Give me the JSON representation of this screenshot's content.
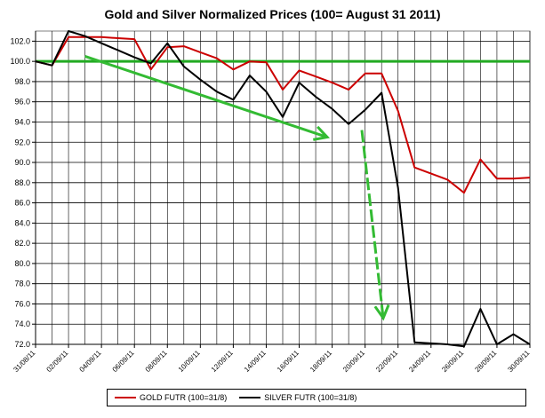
{
  "chart_data": {
    "type": "line",
    "title": "Gold and Silver Normalized Prices  (100= August 31 2011)",
    "xlabel": "",
    "ylabel": "",
    "ylim": [
      72.0,
      103.0
    ],
    "yticks": [
      "72.0",
      "74.0",
      "76.0",
      "78.0",
      "80.0",
      "82.0",
      "84.0",
      "86.0",
      "88.0",
      "90.0",
      "92.0",
      "94.0",
      "96.0",
      "98.0",
      "100.0",
      "102.0"
    ],
    "xticks": [
      "31/08/11",
      "02/09/11",
      "04/09/11",
      "06/09/11",
      "08/09/11",
      "10/09/11",
      "12/09/11",
      "14/09/11",
      "16/09/11",
      "18/09/11",
      "20/09/11",
      "22/09/11",
      "24/09/11",
      "26/09/11",
      "28/09/11",
      "30/09/11"
    ],
    "x_range_days": [
      0,
      30
    ],
    "grid": true,
    "legend_position": "bottom",
    "reference_line": {
      "y": 100.0,
      "color": "#22aa22"
    },
    "series": [
      {
        "name": "GOLD  FUTR (100=31/8)",
        "color": "#cc0000",
        "points": [
          [
            0,
            100.0
          ],
          [
            1,
            99.6
          ],
          [
            2,
            102.4
          ],
          [
            3,
            102.4
          ],
          [
            4,
            102.4
          ],
          [
            5,
            102.3
          ],
          [
            6,
            102.2
          ],
          [
            7,
            99.2
          ],
          [
            8,
            101.4
          ],
          [
            9,
            101.5
          ],
          [
            10,
            100.9
          ],
          [
            11,
            100.3
          ],
          [
            12,
            99.2
          ],
          [
            13,
            100.0
          ],
          [
            14,
            99.9
          ],
          [
            15,
            97.2
          ],
          [
            16,
            99.1
          ],
          [
            17,
            98.5
          ],
          [
            18,
            97.9
          ],
          [
            19,
            97.2
          ],
          [
            20,
            98.8
          ],
          [
            21,
            98.8
          ],
          [
            22,
            95.1
          ],
          [
            23,
            89.5
          ],
          [
            24,
            88.9
          ],
          [
            25,
            88.3
          ],
          [
            26,
            87.0
          ],
          [
            27,
            90.3
          ],
          [
            28,
            88.4
          ],
          [
            29,
            88.4
          ],
          [
            30,
            88.5
          ]
        ]
      },
      {
        "name": "SILVER  FUTR (100=31/8)",
        "color": "#000000",
        "points": [
          [
            0,
            100.0
          ],
          [
            1,
            99.6
          ],
          [
            2,
            103.0
          ],
          [
            3,
            102.5
          ],
          [
            4,
            101.8
          ],
          [
            5,
            101.1
          ],
          [
            6,
            100.4
          ],
          [
            7,
            99.8
          ],
          [
            8,
            101.8
          ],
          [
            9,
            99.5
          ],
          [
            10,
            98.2
          ],
          [
            11,
            97.0
          ],
          [
            12,
            96.2
          ],
          [
            13,
            98.6
          ],
          [
            14,
            97.0
          ],
          [
            15,
            94.5
          ],
          [
            16,
            97.9
          ],
          [
            17,
            96.5
          ],
          [
            18,
            95.3
          ],
          [
            19,
            93.8
          ],
          [
            20,
            95.2
          ],
          [
            21,
            96.9
          ],
          [
            22,
            87.5
          ],
          [
            23,
            72.2
          ],
          [
            24,
            72.1
          ],
          [
            25,
            72.0
          ],
          [
            26,
            71.8
          ],
          [
            27,
            75.5
          ],
          [
            28,
            72.0
          ],
          [
            29,
            73.0
          ],
          [
            30,
            72.0
          ]
        ]
      }
    ],
    "annotations": [
      {
        "type": "arrow",
        "color": "#33bb33",
        "from": [
          3.0,
          100.5
        ],
        "to": [
          17.7,
          92.5
        ]
      },
      {
        "type": "arrow",
        "color": "#33bb33",
        "from": [
          19.8,
          93.2
        ],
        "to": [
          21.1,
          74.6
        ]
      }
    ]
  }
}
